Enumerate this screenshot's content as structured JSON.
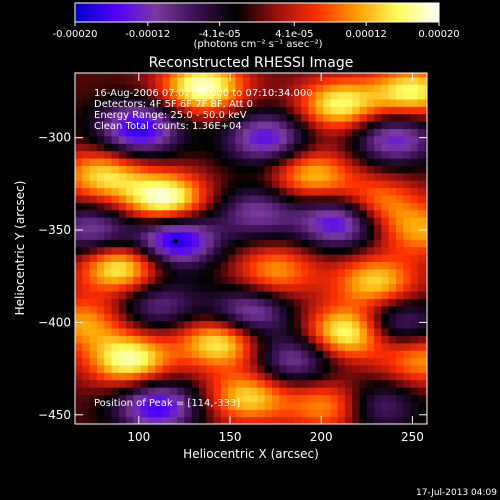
{
  "colorbar": {
    "tick_labels": [
      "-0.00020",
      "-0.00012",
      "-4.1e-05",
      "4.1e-05",
      "0.00012",
      "0.00020"
    ],
    "tick_values": [
      -0.0002,
      -0.00012,
      -4.1e-05,
      4.1e-05,
      0.00012,
      0.0002
    ],
    "range": [
      -0.0002,
      0.0002
    ],
    "units": "(photons cm⁻² s⁻¹ asec⁻²)",
    "stops": [
      "#0000c8",
      "#5000ff",
      "#7a3aa0",
      "#3a1050",
      "#000000",
      "#9a1010",
      "#ff3000",
      "#ffa000",
      "#ffff60",
      "#ffffff"
    ]
  },
  "chart_data": {
    "type": "heatmap",
    "title": "Reconstructed RHESSI Image",
    "xlabel": "Heliocentric X (arcsec)",
    "ylabel": "Heliocentric Y (arcsec)",
    "xlim": [
      65,
      258
    ],
    "ylim": [
      -455,
      -265
    ],
    "xticks": [
      100,
      150,
      200,
      250
    ],
    "yticks": [
      -450,
      -400,
      -350,
      -300
    ],
    "annotations": [
      "16-Aug-2006 07:07:34.000 to 07:10:34.000",
      "Detectors: 4F 5F 6F 7F 8F, Att 0",
      "Energy Range: 25.0 - 50.0 keV",
      "Clean    Total counts: 1.36E+04"
    ],
    "peak_label": "Position of Peak = [114,-333]",
    "peak": [
      114,
      -333
    ],
    "marker": [
      120,
      -356
    ],
    "blobs": [
      {
        "x": 135,
        "y": -272,
        "v": 0.95
      },
      {
        "x": 210,
        "y": -282,
        "v": 0.8
      },
      {
        "x": 250,
        "y": -275,
        "v": 0.8
      },
      {
        "x": 100,
        "y": -295,
        "v": -0.9
      },
      {
        "x": 170,
        "y": -300,
        "v": -0.75
      },
      {
        "x": 240,
        "y": -300,
        "v": -0.7
      },
      {
        "x": 80,
        "y": -320,
        "v": 0.7
      },
      {
        "x": 114,
        "y": -333,
        "v": 1.0
      },
      {
        "x": 195,
        "y": -320,
        "v": 0.65
      },
      {
        "x": 230,
        "y": -335,
        "v": 0.55
      },
      {
        "x": 120,
        "y": -355,
        "v": -1.0
      },
      {
        "x": 210,
        "y": -345,
        "v": -0.85
      },
      {
        "x": 75,
        "y": -350,
        "v": -0.6
      },
      {
        "x": 165,
        "y": -340,
        "v": -0.55
      },
      {
        "x": 90,
        "y": -370,
        "v": 0.85
      },
      {
        "x": 175,
        "y": -372,
        "v": 0.55
      },
      {
        "x": 255,
        "y": -350,
        "v": 0.55
      },
      {
        "x": 230,
        "y": -378,
        "v": 0.7
      },
      {
        "x": 110,
        "y": -390,
        "v": -0.5
      },
      {
        "x": 160,
        "y": -395,
        "v": -0.7
      },
      {
        "x": 240,
        "y": -400,
        "v": -0.6
      },
      {
        "x": 215,
        "y": -405,
        "v": 0.95
      },
      {
        "x": 145,
        "y": -410,
        "v": 0.85
      },
      {
        "x": 70,
        "y": -400,
        "v": 0.55
      },
      {
        "x": 95,
        "y": -420,
        "v": 0.9
      },
      {
        "x": 185,
        "y": -420,
        "v": -0.6
      },
      {
        "x": 255,
        "y": -420,
        "v": 0.55
      },
      {
        "x": 110,
        "y": -445,
        "v": -0.85
      },
      {
        "x": 160,
        "y": -440,
        "v": 0.7
      },
      {
        "x": 230,
        "y": -445,
        "v": -0.5
      },
      {
        "x": 205,
        "y": -445,
        "v": 0.6
      }
    ]
  },
  "footer": {
    "timestamp": "17-Jul-2013 04:09"
  }
}
